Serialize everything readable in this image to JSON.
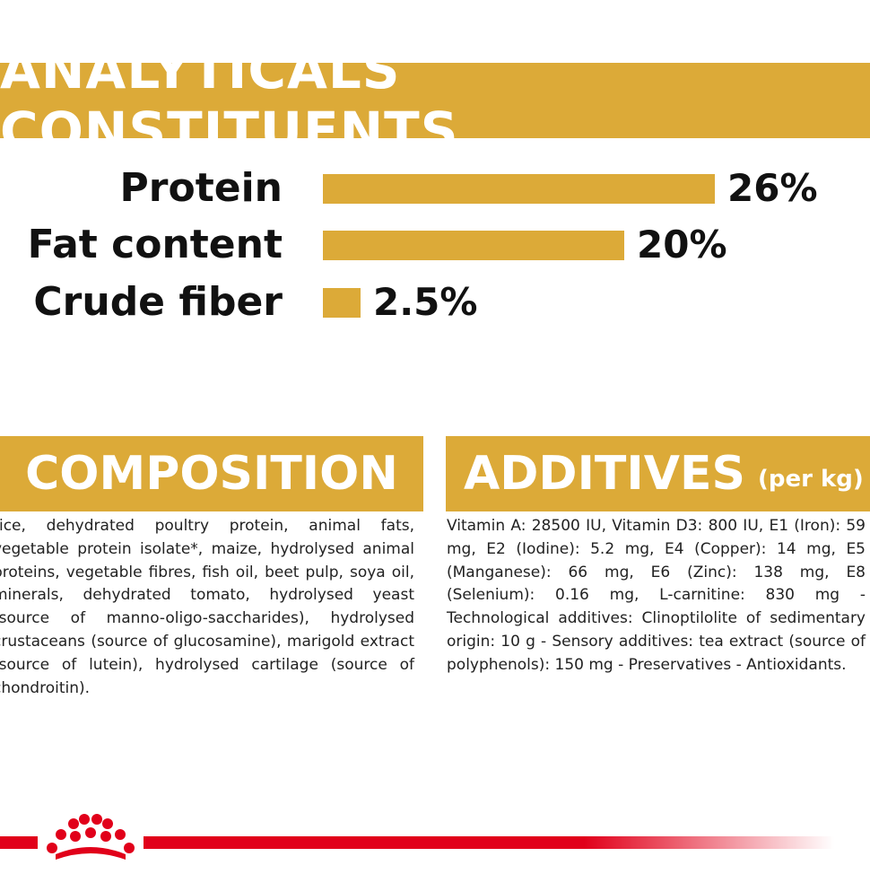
{
  "analytical": {
    "title": "ANALYTICALS CONSTITUENTS",
    "rows": [
      {
        "label": "Protein",
        "value_text": "26%",
        "value": 26
      },
      {
        "label": "Fat content",
        "value_text": "20%",
        "value": 20
      },
      {
        "label": "Crude fiber",
        "value_text": "2.5%",
        "value": 2.5
      }
    ]
  },
  "composition": {
    "title": "COMPOSITION",
    "text": "rice, dehydrated poultry protein, animal fats, vegetable protein isolate*, maize, hydrolysed animal proteins, vegetable fibres, fish oil, beet pulp, soya oil, minerals, dehydrated tomato, hydrolysed yeast (source of manno-oligo-saccharides), hydrolysed crustaceans (source of glucosamine), marigold extract (source of lutein), hydrolysed cartilage (source of chondroitin)."
  },
  "additives": {
    "title": "ADDITIVES",
    "subtitle": "(per kg)",
    "text": "Vitamin A: 28500 IU, Vitamin D3: 800 IU, E1 (Iron): 59 mg, E2 (Iodine): 5.2 mg, E4 (Copper): 14 mg, E5 (Manganese): 66 mg, E6 (Zinc): 138 mg, E8 (Selenium): 0.16 mg, L-carnitine: 830 mg - Technological additives: Clinoptilolite of sedimentary origin: 10 g - Sensory additives: tea extract (source of polyphenols): 150 mg - Preservatives - Antioxidants."
  },
  "colors": {
    "gold": "#dcaa38",
    "brand_red": "#e1001a"
  },
  "icons": {
    "logo": "royal-canin-crown-icon"
  }
}
